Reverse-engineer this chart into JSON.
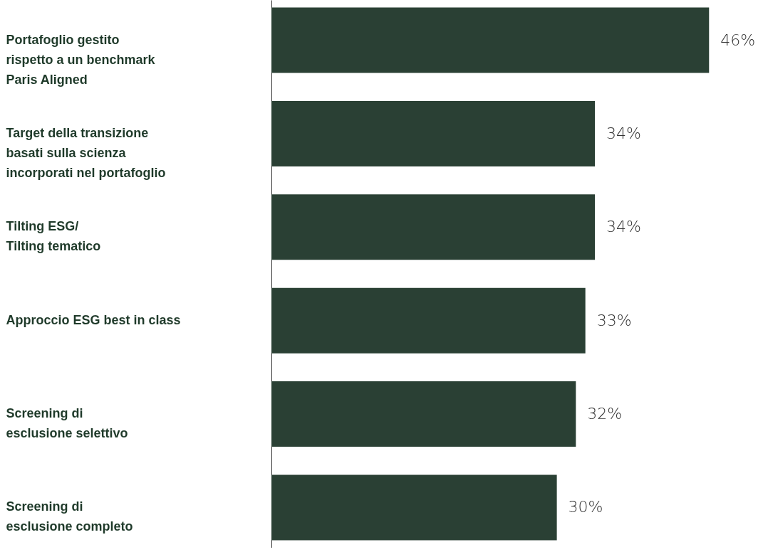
{
  "chart_data": {
    "type": "bar",
    "orientation": "horizontal",
    "categories": [
      "Portafoglio gestito\nrispetto a un benchmark\nParis Aligned",
      "Target della transizione\nbasati sulla scienza\nincorporati nel portafoglio",
      "Tilting ESG/\nTilting tematico",
      "Approccio ESG best in class",
      "Screening di\nesclusione selettivo",
      "Screening di\nesclusione completo"
    ],
    "values": [
      46,
      34,
      34,
      33,
      32,
      30
    ],
    "value_labels": [
      "46%",
      "34%",
      "34%",
      "33%",
      "32%",
      "30%"
    ],
    "color": "#2a4034"
  }
}
